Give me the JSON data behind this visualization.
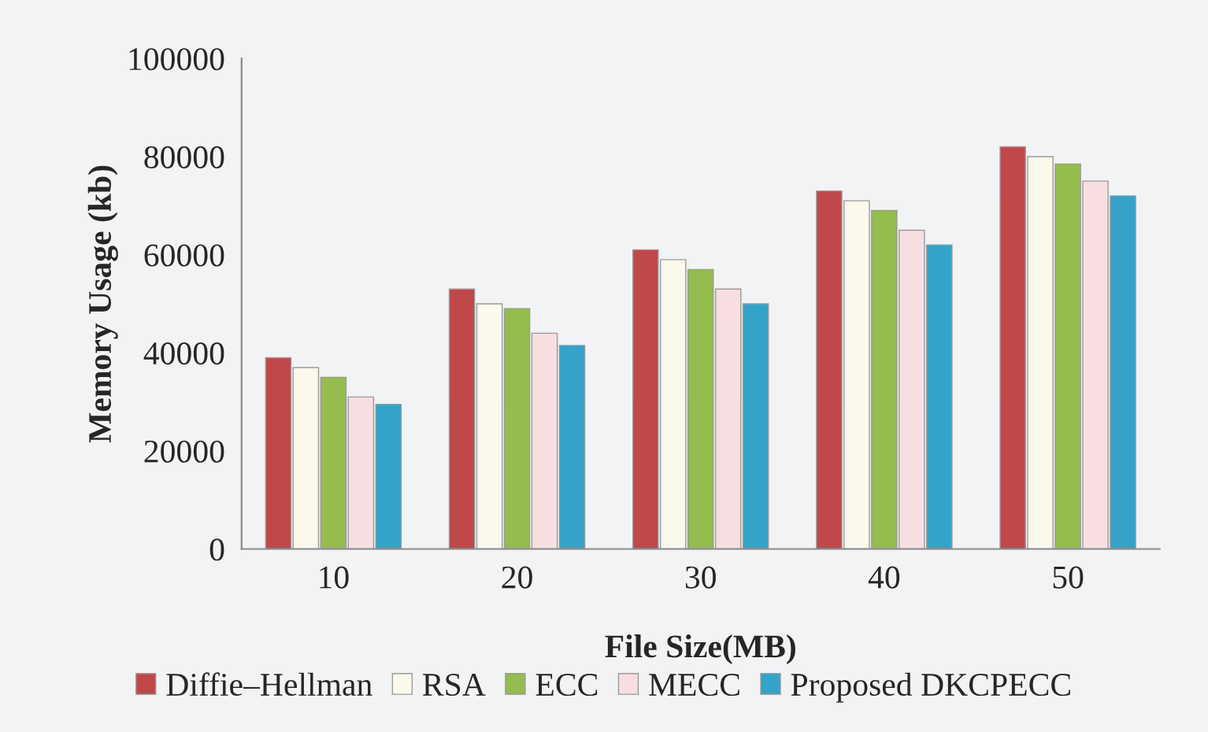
{
  "chart_data": {
    "type": "bar",
    "xlabel": "File Size(MB)",
    "ylabel": "Memory Usage (kb)",
    "categories": [
      "10",
      "20",
      "30",
      "40",
      "50"
    ],
    "series": [
      {
        "name": "Diffie–Hellman",
        "color": "#c0474a",
        "values": [
          39000,
          53000,
          61000,
          73000,
          82000
        ]
      },
      {
        "name": "RSA",
        "color": "#fbf8ec",
        "values": [
          37000,
          50000,
          59000,
          71000,
          80000
        ]
      },
      {
        "name": "ECC",
        "color": "#94bc4e",
        "values": [
          35000,
          49000,
          57000,
          69000,
          78500
        ]
      },
      {
        "name": "MECC",
        "color": "#f7dfe1",
        "values": [
          31000,
          44000,
          53000,
          65000,
          75000
        ]
      },
      {
        "name": "Proposed DKCPECC",
        "color": "#33a3c9",
        "values": [
          29500,
          41500,
          50000,
          62000,
          72000
        ]
      }
    ],
    "ylim": [
      0,
      100000
    ],
    "yticks": [
      0,
      20000,
      40000,
      60000,
      80000,
      100000
    ],
    "grid": false,
    "legend": "bottom"
  }
}
